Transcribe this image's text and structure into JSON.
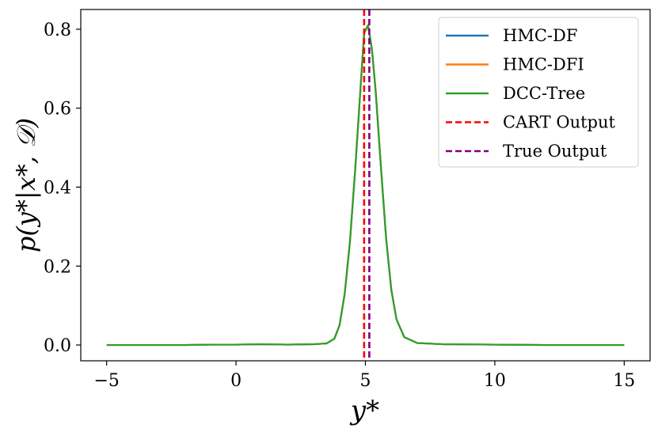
{
  "chart_data": {
    "type": "line",
    "title": "",
    "xlabel": "y*",
    "ylabel": "p(y*|x*, 𝒟)",
    "xlim": [
      -6,
      16
    ],
    "ylim": [
      -0.04,
      0.85
    ],
    "xticks": [
      -5,
      0,
      5,
      10,
      15
    ],
    "xtick_labels": [
      "−5",
      "0",
      "5",
      "10",
      "15"
    ],
    "yticks": [
      0.0,
      0.2,
      0.4,
      0.6,
      0.8
    ],
    "ytick_labels": [
      "0.0",
      "0.2",
      "0.4",
      "0.6",
      "0.8"
    ],
    "grid": false,
    "legend_position": "top-right",
    "series": [
      {
        "name": "HMC-DF",
        "color": "#1f77b4",
        "style": "solid",
        "x": [
          -5,
          -4,
          -3,
          -2,
          -1,
          0,
          1,
          2,
          3,
          3.5,
          3.8,
          4.0,
          4.2,
          4.4,
          4.6,
          4.8,
          4.95,
          5.1,
          5.25,
          5.4,
          5.6,
          5.8,
          6.0,
          6.2,
          6.5,
          7.0,
          8,
          10,
          12,
          15
        ],
        "y": [
          0.0,
          0.0,
          0.0,
          0.0,
          0.001,
          0.001,
          0.002,
          0.001,
          0.002,
          0.004,
          0.016,
          0.05,
          0.13,
          0.26,
          0.44,
          0.64,
          0.79,
          0.81,
          0.75,
          0.64,
          0.45,
          0.27,
          0.14,
          0.065,
          0.02,
          0.005,
          0.002,
          0.001,
          0.0,
          0.0
        ]
      },
      {
        "name": "HMC-DFI",
        "color": "#ff7f0e",
        "style": "solid",
        "x": [
          -5,
          -4,
          -3,
          -2,
          -1,
          0,
          1,
          2,
          3,
          3.5,
          3.8,
          4.0,
          4.2,
          4.4,
          4.6,
          4.8,
          4.95,
          5.1,
          5.25,
          5.4,
          5.6,
          5.8,
          6.0,
          6.2,
          6.5,
          7.0,
          8,
          10,
          12,
          15
        ],
        "y": [
          0.0,
          0.0,
          0.0,
          0.0,
          0.001,
          0.001,
          0.002,
          0.001,
          0.002,
          0.004,
          0.016,
          0.05,
          0.13,
          0.26,
          0.44,
          0.64,
          0.79,
          0.81,
          0.75,
          0.64,
          0.45,
          0.27,
          0.14,
          0.065,
          0.02,
          0.005,
          0.002,
          0.001,
          0.0,
          0.0
        ]
      },
      {
        "name": "DCC-Tree",
        "color": "#2ca02c",
        "style": "solid",
        "x": [
          -5,
          -4,
          -3,
          -2,
          -1,
          0,
          1,
          2,
          3,
          3.5,
          3.8,
          4.0,
          4.2,
          4.4,
          4.6,
          4.8,
          4.95,
          5.1,
          5.25,
          5.4,
          5.6,
          5.8,
          6.0,
          6.2,
          6.5,
          7.0,
          8,
          10,
          12,
          15
        ],
        "y": [
          0.0,
          0.0,
          0.0,
          0.0,
          0.001,
          0.001,
          0.002,
          0.001,
          0.002,
          0.004,
          0.016,
          0.05,
          0.13,
          0.26,
          0.44,
          0.64,
          0.79,
          0.81,
          0.75,
          0.64,
          0.45,
          0.27,
          0.14,
          0.065,
          0.02,
          0.005,
          0.002,
          0.001,
          0.0,
          0.0
        ]
      }
    ],
    "vlines": [
      {
        "name": "CART Output",
        "x": 4.95,
        "color": "#ff0000",
        "style": "dashed"
      },
      {
        "name": "True Output",
        "x": 5.15,
        "color": "#800080",
        "style": "dashed"
      }
    ]
  }
}
